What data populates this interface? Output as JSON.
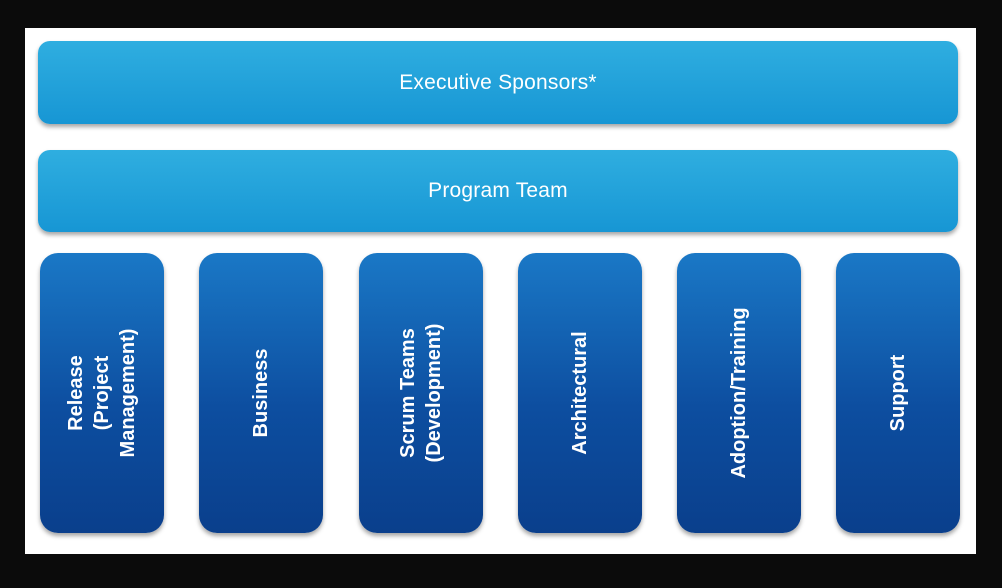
{
  "bands": {
    "executive": "Executive Sponsors*",
    "program": "Program Team"
  },
  "columns": [
    "Release\n(Project\nManagement)",
    "Business",
    "Scrum Teams\n(Development)",
    "Architectural",
    "Adoption/Training",
    "Support"
  ],
  "colors": {
    "band_blue": "#1fa3dd",
    "column_blue": "#0d4ea0",
    "background": "#0b0b0b",
    "canvas": "#ffffff"
  }
}
